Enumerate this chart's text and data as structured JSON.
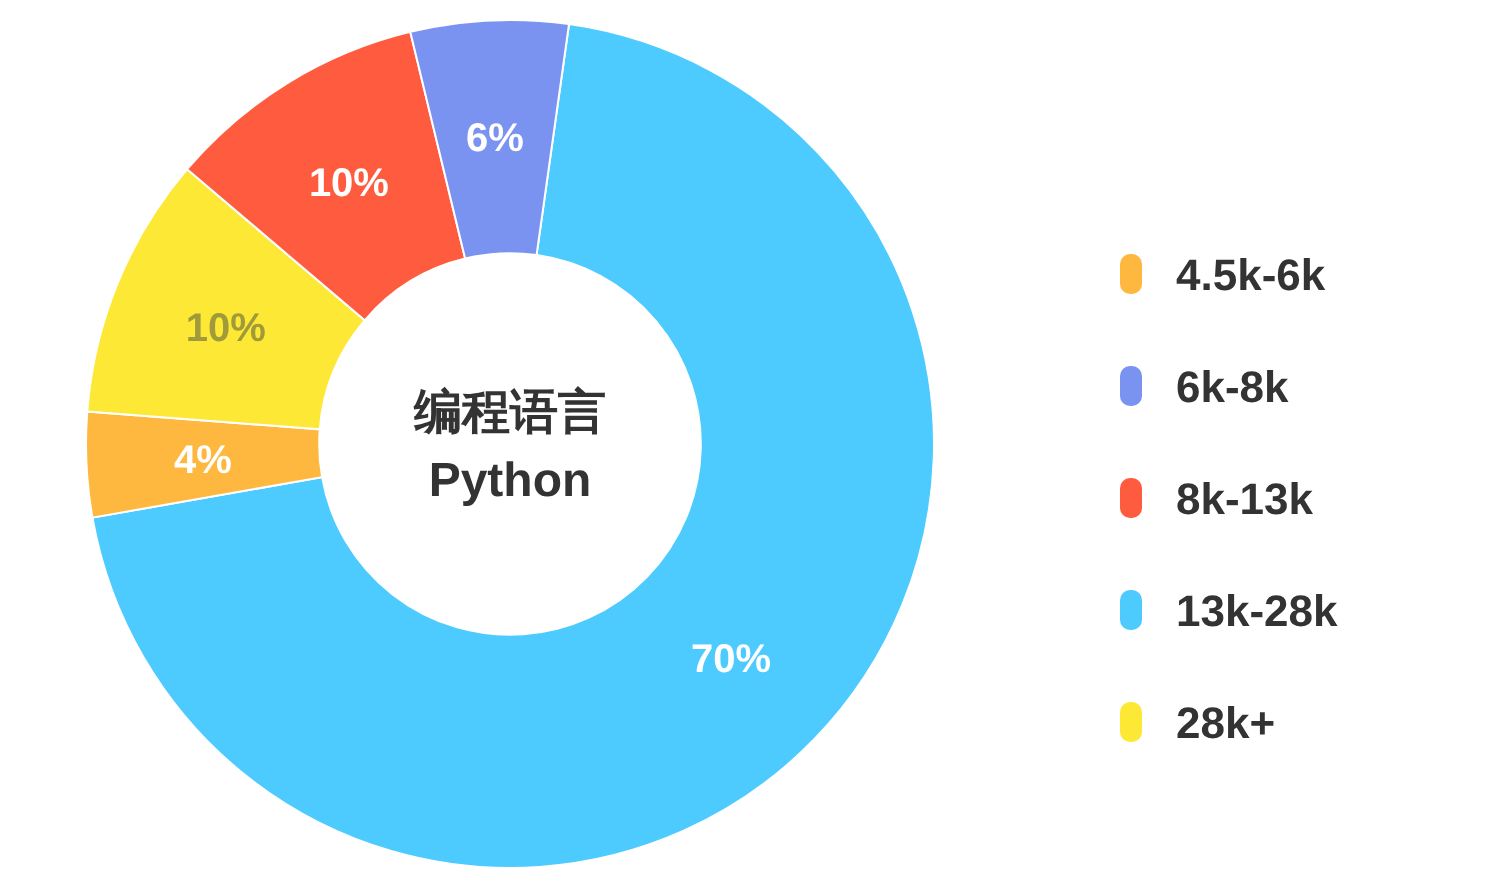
{
  "chart_data": {
    "type": "donut",
    "title": "编程语言",
    "subtitle": "Python",
    "categories": [
      "4.5k-6k",
      "6k-8k",
      "8k-13k",
      "13k-28k",
      "28k+"
    ],
    "values": [
      4,
      6,
      10,
      70,
      10
    ],
    "colors": [
      "#ffb83f",
      "#7b93f0",
      "#ff5c3f",
      "#4dcbff",
      "#fde935"
    ],
    "value_labels": [
      "4%",
      "6%",
      "10%",
      "70%",
      "10%"
    ],
    "legend": "right"
  }
}
